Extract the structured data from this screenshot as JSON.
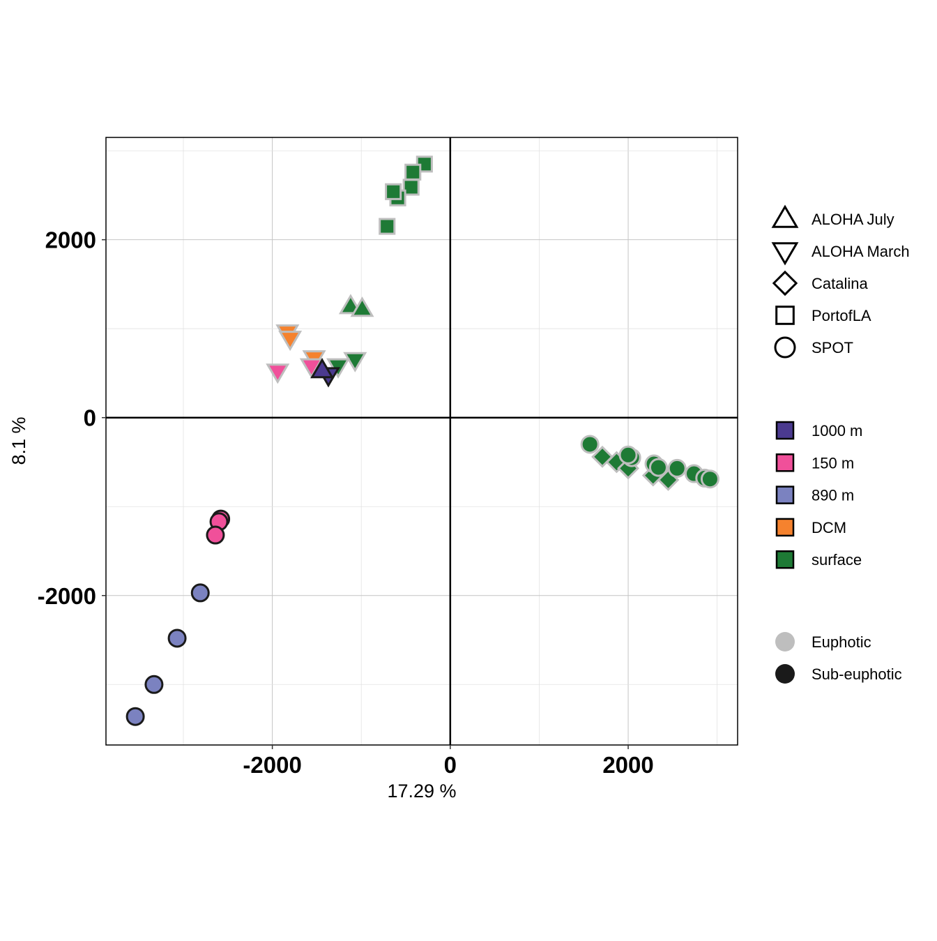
{
  "chart_data": {
    "type": "scatter",
    "title": "",
    "xlabel": "17.29 %",
    "ylabel": "8.1 %",
    "xlim": [
      -3870,
      3230
    ],
    "ylim": [
      -3680,
      3150
    ],
    "xticks": [
      -2000,
      0,
      2000
    ],
    "yticks": [
      -2000,
      0,
      2000
    ],
    "x_tick_labels": [
      "-2000",
      "0",
      "2000"
    ],
    "y_tick_labels": [
      "-2000",
      "0",
      "2000"
    ],
    "grid": true,
    "legend_position": "right",
    "colors": {
      "1000 m": "#4b3a8f",
      "150 m": "#f0509a",
      "890 m": "#7b82c0",
      "DCM": "#f5822e",
      "surface": "#1e7a35",
      "Euphotic": "#bebebe",
      "Sub-euphotic": "#1a1a1a"
    },
    "legend_shape": {
      "items": [
        {
          "label": "ALOHA July",
          "shape": "triangle-up"
        },
        {
          "label": "ALOHA March",
          "shape": "triangle-down"
        },
        {
          "label": "Catalina",
          "shape": "diamond"
        },
        {
          "label": "PortofLA",
          "shape": "square"
        },
        {
          "label": "SPOT",
          "shape": "circle"
        }
      ]
    },
    "legend_depth": {
      "items": [
        {
          "label": "1000 m",
          "color": "#4b3a8f"
        },
        {
          "label": "150 m",
          "color": "#f0509a"
        },
        {
          "label": "890 m",
          "color": "#7b82c0"
        },
        {
          "label": "DCM",
          "color": "#f5822e"
        },
        {
          "label": "surface",
          "color": "#1e7a35"
        }
      ]
    },
    "legend_zone": {
      "items": [
        {
          "label": "Euphotic",
          "color": "#bebebe"
        },
        {
          "label": "Sub-euphotic",
          "color": "#1a1a1a"
        }
      ]
    },
    "points": [
      {
        "x": -290,
        "y": 2850,
        "site": "PortofLA",
        "depth": "surface",
        "zone": "Euphotic"
      },
      {
        "x": -420,
        "y": 2760,
        "site": "PortofLA",
        "depth": "surface",
        "zone": "Euphotic"
      },
      {
        "x": -440,
        "y": 2590,
        "site": "PortofLA",
        "depth": "surface",
        "zone": "Euphotic"
      },
      {
        "x": -590,
        "y": 2470,
        "site": "PortofLA",
        "depth": "surface",
        "zone": "Euphotic"
      },
      {
        "x": -640,
        "y": 2540,
        "site": "PortofLA",
        "depth": "surface",
        "zone": "Euphotic"
      },
      {
        "x": -710,
        "y": 2150,
        "site": "PortofLA",
        "depth": "surface",
        "zone": "Euphotic"
      },
      {
        "x": -1120,
        "y": 1250,
        "site": "ALOHA July",
        "depth": "surface",
        "zone": "Euphotic"
      },
      {
        "x": -990,
        "y": 1220,
        "site": "ALOHA July",
        "depth": "surface",
        "zone": "Euphotic"
      },
      {
        "x": -1830,
        "y": 960,
        "site": "ALOHA March",
        "depth": "DCM",
        "zone": "Euphotic"
      },
      {
        "x": -1800,
        "y": 890,
        "site": "ALOHA March",
        "depth": "DCM",
        "zone": "Euphotic"
      },
      {
        "x": -1530,
        "y": 670,
        "site": "ALOHA March",
        "depth": "DCM",
        "zone": "Euphotic"
      },
      {
        "x": -1940,
        "y": 520,
        "site": "ALOHA March",
        "depth": "150 m",
        "zone": "Euphotic"
      },
      {
        "x": -1560,
        "y": 580,
        "site": "ALOHA March",
        "depth": "150 m",
        "zone": "Euphotic"
      },
      {
        "x": -1070,
        "y": 650,
        "site": "ALOHA March",
        "depth": "surface",
        "zone": "Euphotic"
      },
      {
        "x": -1260,
        "y": 580,
        "site": "ALOHA March",
        "depth": "surface",
        "zone": "Euphotic"
      },
      {
        "x": -1370,
        "y": 480,
        "site": "ALOHA March",
        "depth": "1000 m",
        "zone": "Sub-euphotic"
      },
      {
        "x": -1440,
        "y": 530,
        "site": "ALOHA July",
        "depth": "1000 m",
        "zone": "Sub-euphotic"
      },
      {
        "x": 1570,
        "y": -300,
        "site": "SPOT",
        "depth": "surface",
        "zone": "Euphotic"
      },
      {
        "x": 1710,
        "y": -440,
        "site": "Catalina",
        "depth": "surface",
        "zone": "Euphotic"
      },
      {
        "x": 1870,
        "y": -500,
        "site": "Catalina",
        "depth": "surface",
        "zone": "Euphotic"
      },
      {
        "x": 2000,
        "y": -570,
        "site": "Catalina",
        "depth": "surface",
        "zone": "Euphotic"
      },
      {
        "x": 2040,
        "y": -450,
        "site": "SPOT",
        "depth": "surface",
        "zone": "Euphotic"
      },
      {
        "x": 2000,
        "y": -420,
        "site": "SPOT",
        "depth": "surface",
        "zone": "Euphotic"
      },
      {
        "x": 2280,
        "y": -650,
        "site": "Catalina",
        "depth": "surface",
        "zone": "Euphotic"
      },
      {
        "x": 2450,
        "y": -700,
        "site": "Catalina",
        "depth": "surface",
        "zone": "Euphotic"
      },
      {
        "x": 2290,
        "y": -520,
        "site": "SPOT",
        "depth": "surface",
        "zone": "Euphotic"
      },
      {
        "x": 2340,
        "y": -560,
        "site": "SPOT",
        "depth": "surface",
        "zone": "Euphotic"
      },
      {
        "x": 2550,
        "y": -570,
        "site": "SPOT",
        "depth": "surface",
        "zone": "Euphotic"
      },
      {
        "x": 2740,
        "y": -630,
        "site": "SPOT",
        "depth": "surface",
        "zone": "Euphotic"
      },
      {
        "x": 2860,
        "y": -680,
        "site": "SPOT",
        "depth": "surface",
        "zone": "Euphotic"
      },
      {
        "x": 2920,
        "y": -690,
        "site": "SPOT",
        "depth": "surface",
        "zone": "Euphotic"
      },
      {
        "x": -2580,
        "y": -1140,
        "site": "SPOT",
        "depth": "150 m",
        "zone": "Sub-euphotic"
      },
      {
        "x": -2600,
        "y": -1170,
        "site": "SPOT",
        "depth": "150 m",
        "zone": "Sub-euphotic"
      },
      {
        "x": -2640,
        "y": -1320,
        "site": "SPOT",
        "depth": "150 m",
        "zone": "Sub-euphotic"
      },
      {
        "x": -2810,
        "y": -1970,
        "site": "SPOT",
        "depth": "890 m",
        "zone": "Sub-euphotic"
      },
      {
        "x": -3070,
        "y": -2480,
        "site": "SPOT",
        "depth": "890 m",
        "zone": "Sub-euphotic"
      },
      {
        "x": -3330,
        "y": -3000,
        "site": "SPOT",
        "depth": "890 m",
        "zone": "Sub-euphotic"
      },
      {
        "x": -3540,
        "y": -3360,
        "site": "SPOT",
        "depth": "890 m",
        "zone": "Sub-euphotic"
      }
    ]
  }
}
